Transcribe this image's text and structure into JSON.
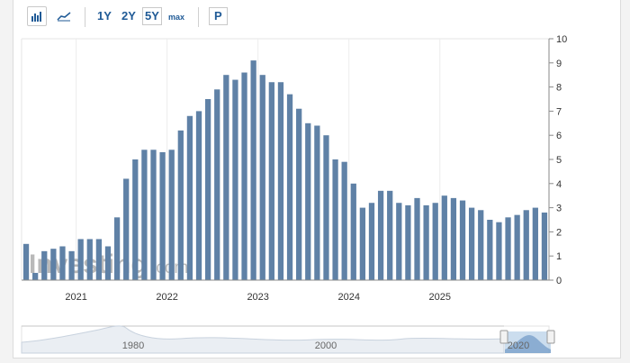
{
  "toolbar": {
    "range_1y": "1Y",
    "range_2y": "2Y",
    "range_5y": "5Y",
    "range_max": "max",
    "p_button": "P",
    "icons": [
      "bar-chart-icon",
      "area-chart-icon"
    ]
  },
  "watermark": {
    "text": "Investing",
    "suffix": ".com"
  },
  "navigator": {
    "labels": [
      "1980",
      "2000",
      "2020"
    ]
  },
  "colors": {
    "bar": "#5f81a6",
    "accent": "#1f5a96",
    "navigator_fill": "#a9c6e2"
  },
  "chart_data": {
    "type": "bar",
    "title": "",
    "xlabel": "",
    "ylabel": "",
    "ylim": [
      0,
      10
    ],
    "y_ticks": [
      "0",
      "1",
      "2",
      "3",
      "4",
      "5",
      "6",
      "7",
      "8",
      "9",
      "10"
    ],
    "x_ticks": [
      "2021",
      "2022",
      "2023",
      "2024",
      "2025"
    ],
    "grid": true,
    "x_tick_index": [
      6,
      16,
      26,
      36,
      46
    ],
    "values": [
      1.5,
      0.3,
      1.2,
      1.3,
      1.4,
      1.2,
      1.7,
      1.7,
      1.7,
      1.4,
      2.6,
      4.2,
      5.0,
      5.4,
      5.4,
      5.3,
      5.4,
      6.2,
      6.8,
      7.0,
      7.5,
      7.9,
      8.5,
      8.3,
      8.6,
      9.1,
      8.5,
      8.2,
      8.2,
      7.7,
      7.1,
      6.5,
      6.4,
      6.0,
      5.0,
      4.9,
      4.0,
      3.0,
      3.2,
      3.7,
      3.7,
      3.2,
      3.1,
      3.4,
      3.1,
      3.2,
      3.5,
      3.4,
      3.3,
      3.0,
      2.9,
      2.5,
      2.4,
      2.6,
      2.7,
      2.9,
      3.0,
      2.8
    ]
  }
}
